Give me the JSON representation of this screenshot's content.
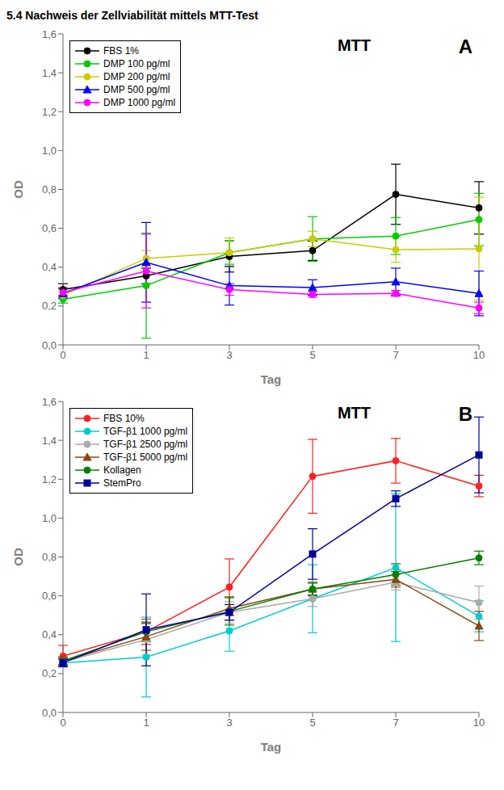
{
  "chart_data": [
    {
      "type": "line",
      "title": "5.4 Nachweis der Zellviabilität mittels MTT-Test",
      "x_label": "Tag",
      "y_label": "OD",
      "categories": [
        "0",
        "1",
        "3",
        "5",
        "7",
        "10"
      ],
      "ylim": [
        0.0,
        1.6
      ],
      "yticks": [
        {
          "value": 0.0,
          "label": "0,0"
        },
        {
          "value": 0.2,
          "label": "0,2"
        },
        {
          "value": 0.4,
          "label": "0,4"
        },
        {
          "value": 0.6,
          "label": "0,6"
        },
        {
          "value": 0.8,
          "label": "0,8"
        },
        {
          "value": 1.0,
          "label": "1,0"
        },
        {
          "value": 1.2,
          "label": "1,2"
        },
        {
          "value": 1.4,
          "label": "1,4"
        },
        {
          "value": 1.6,
          "label": "1,6"
        }
      ],
      "grid": false,
      "legend": "upper left",
      "annotations": [
        "MTT",
        "A"
      ],
      "series": [
        {
          "name": "FBS 1%",
          "color": "#000000",
          "marker": "circle",
          "values": [
            0.285,
            0.355,
            0.455,
            0.485,
            0.775,
            0.705
          ],
          "yerr": [
            0.03,
            0.04,
            0.08,
            0.05,
            0.155,
            0.135
          ]
        },
        {
          "name": "DMP 100 pg/ml",
          "color": "#00cc00",
          "marker": "circle",
          "values": [
            0.235,
            0.305,
            0.475,
            0.545,
            0.56,
            0.645
          ],
          "yerr": [
            0.02,
            0.27,
            0.06,
            0.115,
            0.095,
            0.135
          ]
        },
        {
          "name": "DMP 200 pg/ml",
          "color": "#cccc00",
          "marker": "circle",
          "values": [
            0.255,
            0.445,
            0.475,
            0.545,
            0.49,
            0.495
          ],
          "yerr": [
            0.02,
            0.04,
            0.075,
            0.04,
            0.065,
            0.265
          ]
        },
        {
          "name": "DMP 500 pg/ml",
          "color": "#0000ff",
          "marker": "triangle",
          "values": [
            0.265,
            0.425,
            0.305,
            0.295,
            0.325,
            0.265
          ],
          "yerr": [
            0.025,
            0.205,
            0.1,
            0.04,
            0.07,
            0.115
          ]
        },
        {
          "name": "DMP 1000 pg/ml",
          "color": "#ff00ff",
          "marker": "circle",
          "values": [
            0.27,
            0.38,
            0.285,
            0.26,
            0.265,
            0.19
          ],
          "yerr": [
            0.025,
            0.19,
            0.03,
            0.015,
            0.015,
            0.03
          ]
        }
      ]
    },
    {
      "type": "line",
      "x_label": "Tag",
      "y_label": "OD",
      "categories": [
        "0",
        "1",
        "3",
        "5",
        "7",
        "10"
      ],
      "ylim": [
        0.0,
        1.6
      ],
      "yticks": [
        {
          "value": 0.0,
          "label": "0,0"
        },
        {
          "value": 0.2,
          "label": "0,2"
        },
        {
          "value": 0.4,
          "label": "0,4"
        },
        {
          "value": 0.6,
          "label": "0,6"
        },
        {
          "value": 0.8,
          "label": "0,8"
        },
        {
          "value": 1.0,
          "label": "1,0"
        },
        {
          "value": 1.2,
          "label": "1,2"
        },
        {
          "value": 1.4,
          "label": "1,4"
        },
        {
          "value": 1.6,
          "label": "1,6"
        }
      ],
      "grid": false,
      "legend": "upper left",
      "annotations": [
        "MTT",
        "B"
      ],
      "series": [
        {
          "name": "FBS 10%",
          "color": "#ff2020",
          "marker": "circle",
          "values": [
            0.29,
            0.415,
            0.645,
            1.215,
            1.295,
            1.165
          ],
          "yerr": [
            0.055,
            0.065,
            0.145,
            0.19,
            0.115,
            0.055
          ]
        },
        {
          "name": "TGF-β1 1000 pg/ml",
          "color": "#00cccc",
          "marker": "circle",
          "values": [
            0.255,
            0.285,
            0.42,
            0.585,
            0.745,
            0.495
          ],
          "yerr": [
            0.02,
            0.205,
            0.105,
            0.175,
            0.38,
            0.08
          ]
        },
        {
          "name": "TGF-β1 2500 pg/ml",
          "color": "#aaaaaa",
          "marker": "circle",
          "values": [
            0.26,
            0.375,
            0.515,
            0.585,
            0.67,
            0.565
          ],
          "yerr": [
            0.02,
            0.08,
            0.055,
            0.04,
            0.04,
            0.085
          ]
        },
        {
          "name": "TGF-β1 5000 pg/ml",
          "color": "#8B4513",
          "marker": "triangle",
          "values": [
            0.265,
            0.39,
            0.535,
            0.635,
            0.685,
            0.445
          ],
          "yerr": [
            0.02,
            0.07,
            0.06,
            0.035,
            0.04,
            0.075
          ]
        },
        {
          "name": "Kollagen",
          "color": "#008000",
          "marker": "circle",
          "values": [
            0.265,
            0.415,
            0.52,
            0.635,
            0.71,
            0.795
          ],
          "yerr": [
            0.02,
            0.05,
            0.07,
            0.03,
            0.055,
            0.035
          ]
        },
        {
          "name": "StemPro",
          "color": "#000099",
          "marker": "square",
          "values": [
            0.255,
            0.425,
            0.515,
            0.815,
            1.1,
            1.325
          ],
          "yerr": [
            0.02,
            0.185,
            0.04,
            0.13,
            0.04,
            0.195
          ]
        }
      ]
    }
  ]
}
